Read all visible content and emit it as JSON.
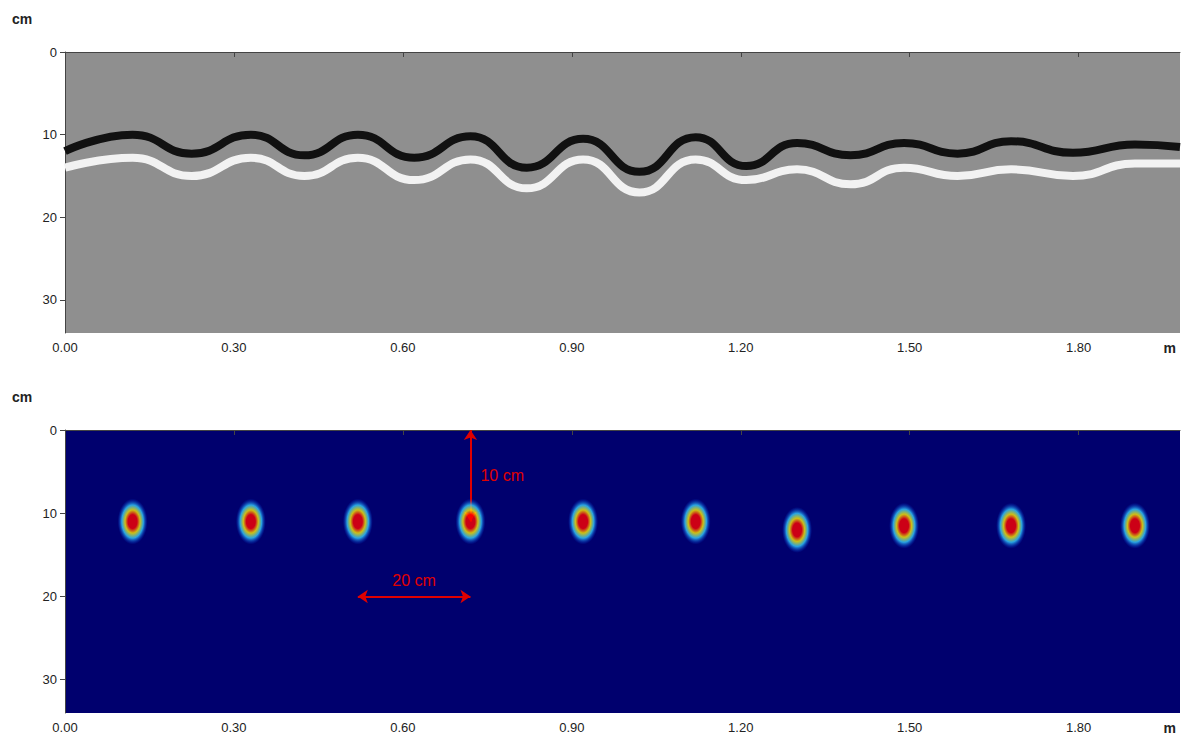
{
  "chart_data": [
    {
      "type": "line",
      "x_label": "m",
      "y_label": "cm",
      "x": [
        0.0,
        0.12,
        0.225,
        0.33,
        0.425,
        0.52,
        0.62,
        0.72,
        0.82,
        0.92,
        1.02,
        1.12,
        1.21,
        1.3,
        1.395,
        1.49,
        1.585,
        1.68,
        1.79,
        1.9,
        1.98
      ],
      "series": [
        {
          "color": "#111111",
          "values": [
            12,
            10,
            12.3,
            10,
            12.5,
            10,
            12.8,
            10.2,
            14,
            10.5,
            14.5,
            10.3,
            13.8,
            11,
            12.5,
            11,
            12.3,
            10.8,
            12.2,
            11.2,
            11.5
          ]
        },
        {
          "color": "#f2f2f2",
          "values": [
            14,
            12.8,
            15,
            12.8,
            15,
            12.8,
            15.5,
            13,
            16.5,
            13,
            17,
            13,
            15.5,
            14.2,
            16,
            14,
            15,
            14.2,
            15,
            13.5,
            13.5
          ]
        }
      ],
      "xlim": [
        0,
        1.98
      ],
      "xticks": [
        {
          "value": 0,
          "label": "0.00"
        },
        {
          "value": 0.3,
          "label": "0.30"
        },
        {
          "value": 0.6,
          "label": "0.60"
        },
        {
          "value": 0.9,
          "label": "0.90"
        },
        {
          "value": 1.2,
          "label": "1.20"
        },
        {
          "value": 1.5,
          "label": "1.50"
        },
        {
          "value": 1.8,
          "label": "1.80"
        }
      ],
      "ylim": [
        0,
        34
      ],
      "yticks": [
        0,
        10,
        20,
        30
      ],
      "grid": false
    },
    {
      "type": "scatter",
      "x_label": "m",
      "y_label": "cm",
      "x": [
        0.12,
        0.33,
        0.52,
        0.72,
        0.92,
        1.12,
        1.3,
        1.49,
        1.68,
        1.9
      ],
      "values": [
        11,
        11,
        11,
        11,
        11,
        11,
        12,
        11.5,
        11.5,
        11.5
      ],
      "color": "#ff0000",
      "xlim": [
        0,
        1.98
      ],
      "xticks": [
        {
          "value": 0,
          "label": "0.00"
        },
        {
          "value": 0.3,
          "label": "0.30"
        },
        {
          "value": 0.6,
          "label": "0.60"
        },
        {
          "value": 0.9,
          "label": "0.90"
        },
        {
          "value": 1.2,
          "label": "1.20"
        },
        {
          "value": 1.5,
          "label": "1.50"
        },
        {
          "value": 1.8,
          "label": "1.80"
        }
      ],
      "ylim": [
        0,
        34
      ],
      "yticks": [
        0,
        10,
        20,
        30
      ],
      "grid": false,
      "annotations": [
        {
          "text": "10 cm",
          "from": [
            0.72,
            0
          ],
          "to": [
            0.72,
            11
          ],
          "color": "#e00000"
        },
        {
          "text": "20 cm",
          "from": [
            0.52,
            20
          ],
          "to": [
            0.72,
            20
          ],
          "color": "#e00000"
        }
      ]
    }
  ]
}
